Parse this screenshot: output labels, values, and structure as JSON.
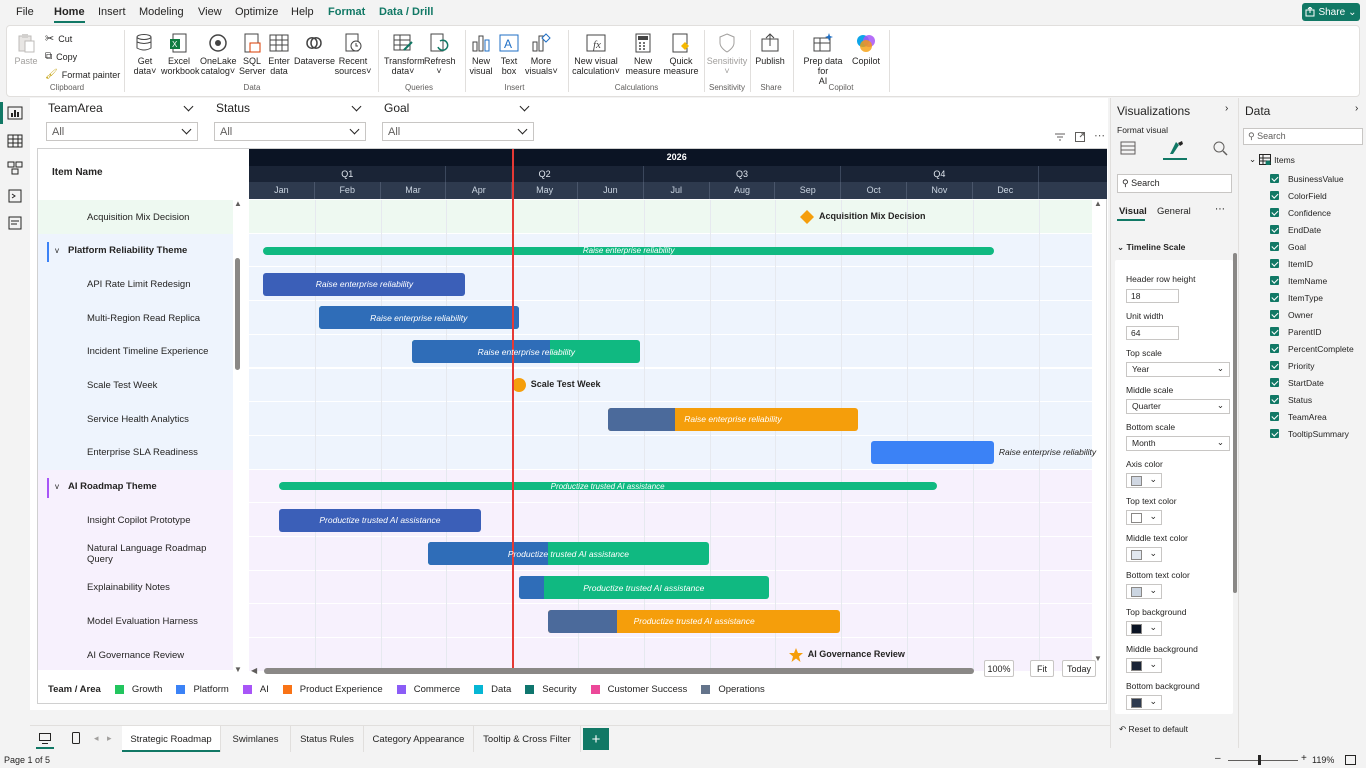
{
  "menu": {
    "items": [
      "File",
      "Home",
      "Insert",
      "Modeling",
      "View",
      "Optimize",
      "Help",
      "Format",
      "Data / Drill"
    ],
    "active": "Home",
    "share": "Share"
  },
  "ribbon": {
    "clipboard": {
      "paste": "Paste",
      "cut": "Cut",
      "copy": "Copy",
      "format_painter": "Format painter",
      "label": "Clipboard"
    },
    "data": {
      "get_data": [
        "Get",
        "data"
      ],
      "excel": [
        "Excel",
        "workbook"
      ],
      "onelake": [
        "OneLake",
        "catalog"
      ],
      "sql": [
        "SQL",
        "Server"
      ],
      "enter": [
        "Enter",
        "data"
      ],
      "dataverse": "Dataverse",
      "recent": [
        "Recent",
        "sources"
      ],
      "label": "Data"
    },
    "queries": {
      "transform": [
        "Transform",
        "data"
      ],
      "refresh": "Refresh",
      "label": "Queries"
    },
    "insert": {
      "new_visual": [
        "New",
        "visual"
      ],
      "text_box": [
        "Text",
        "box"
      ],
      "more_visuals": [
        "More",
        "visuals"
      ],
      "label": "Insert"
    },
    "calculations": {
      "new_visual_calc": [
        "New visual",
        "calculation"
      ],
      "new_measure": [
        "New",
        "measure"
      ],
      "quick_measure": [
        "Quick",
        "measure"
      ],
      "label": "Calculations"
    },
    "sensitivity": {
      "btn": "Sensitivity",
      "label": "Sensitivity"
    },
    "share": {
      "publish": "Publish",
      "label": "Share"
    },
    "copilot": {
      "prep": [
        "Prep data for",
        "AI"
      ],
      "copilot": "Copilot",
      "label": "Copilot"
    }
  },
  "slicers": [
    {
      "title": "TeamArea",
      "value": "All"
    },
    {
      "title": "Status",
      "value": "All"
    },
    {
      "title": "Goal",
      "value": "All"
    }
  ],
  "gantt": {
    "header_label": "Item Name",
    "year": "2026",
    "quarters": [
      "Q1",
      "Q2",
      "Q3",
      "Q4"
    ],
    "months": [
      "Jan",
      "Feb",
      "Mar",
      "Apr",
      "May",
      "Jun",
      "Jul",
      "Aug",
      "Sep",
      "Oct",
      "Nov",
      "Dec"
    ],
    "rows": [
      {
        "name": "Acquisition Mix Decision",
        "type": "item",
        "bg": "#eef9f1"
      },
      {
        "name": "Platform Reliability Theme",
        "type": "theme",
        "color": "#3b82f6",
        "bg": "#eef4fd"
      },
      {
        "name": "API Rate Limit Redesign",
        "type": "item",
        "bg": "#eef4fd"
      },
      {
        "name": "Multi-Region Read Replica",
        "type": "item",
        "bg": "#eef4fd"
      },
      {
        "name": "Incident Timeline Experience",
        "type": "item",
        "bg": "#eef4fd"
      },
      {
        "name": "Scale Test Week",
        "type": "item",
        "bg": "#eef4fd"
      },
      {
        "name": "Service Health Analytics",
        "type": "item",
        "bg": "#eef4fd"
      },
      {
        "name": "Enterprise SLA Readiness",
        "type": "item",
        "bg": "#eef4fd"
      },
      {
        "name": "AI Roadmap Theme",
        "type": "theme",
        "color": "#a855f7",
        "bg": "#f7f1fd"
      },
      {
        "name": "Insight Copilot Prototype",
        "type": "item",
        "bg": "#f7f1fd"
      },
      {
        "name": "Natural Language Roadmap Query",
        "type": "item",
        "bg": "#f7f1fd"
      },
      {
        "name": "Explainability Notes",
        "type": "item",
        "bg": "#f7f1fd"
      },
      {
        "name": "Model Evaluation Harness",
        "type": "item",
        "bg": "#f7f1fd"
      },
      {
        "name": "AI Governance Review",
        "type": "item",
        "bg": "#f7f1fd"
      }
    ],
    "bar_label_reliability": "Raise enterprise reliability",
    "bar_label_ai": "Productize trusted AI assistance",
    "milestones": {
      "acq": "Acquisition Mix Decision",
      "scale": "Scale Test Week",
      "gov": "AI Governance Review"
    },
    "legend_title": "Team / Area",
    "legend": [
      {
        "name": "Growth",
        "color": "#22c55e"
      },
      {
        "name": "Platform",
        "color": "#3b82f6"
      },
      {
        "name": "AI",
        "color": "#a855f7"
      },
      {
        "name": "Product Experience",
        "color": "#f97316"
      },
      {
        "name": "Commerce",
        "color": "#8b5cf6"
      },
      {
        "name": "Data",
        "color": "#06b6d4"
      },
      {
        "name": "Security",
        "color": "#0f766e"
      },
      {
        "name": "Customer Success",
        "color": "#ec4899"
      },
      {
        "name": "Operations",
        "color": "#64748b"
      }
    ],
    "zoom": "100%",
    "fit": "Fit",
    "today": "Today"
  },
  "viz": {
    "title": "Visualizations",
    "subtitle": "Format visual",
    "search": "Search",
    "tab_visual": "Visual",
    "tab_general": "General",
    "section": "Timeline Scale",
    "props": {
      "header_row_height_label": "Header row height",
      "header_row_height": "18",
      "unit_width_label": "Unit width",
      "unit_width": "64",
      "top_scale_label": "Top scale",
      "top_scale": "Year",
      "middle_scale_label": "Middle scale",
      "middle_scale": "Quarter",
      "bottom_scale_label": "Bottom scale",
      "bottom_scale": "Month",
      "axis_color_label": "Axis color",
      "top_text_color_label": "Top text color",
      "middle_text_color_label": "Middle text color",
      "bottom_text_color_label": "Bottom text color",
      "top_background_label": "Top background",
      "middle_background_label": "Middle background",
      "bottom_background_label": "Bottom background"
    },
    "reset": "Reset to default"
  },
  "data_pane": {
    "title": "Data",
    "search": "Search",
    "table": "Items",
    "fields": [
      "BusinessValue",
      "ColorField",
      "Confidence",
      "EndDate",
      "Goal",
      "ItemID",
      "ItemName",
      "ItemType",
      "Owner",
      "ParentID",
      "PercentComplete",
      "Priority",
      "StartDate",
      "Status",
      "TeamArea",
      "TooltipSummary"
    ]
  },
  "tabs": [
    "Strategic Roadmap",
    "Swimlanes",
    "Status Rules",
    "Category Appearance",
    "Tooltip & Cross Filter"
  ],
  "status": {
    "page": "Page 1 of 5",
    "zoom": "119%"
  }
}
